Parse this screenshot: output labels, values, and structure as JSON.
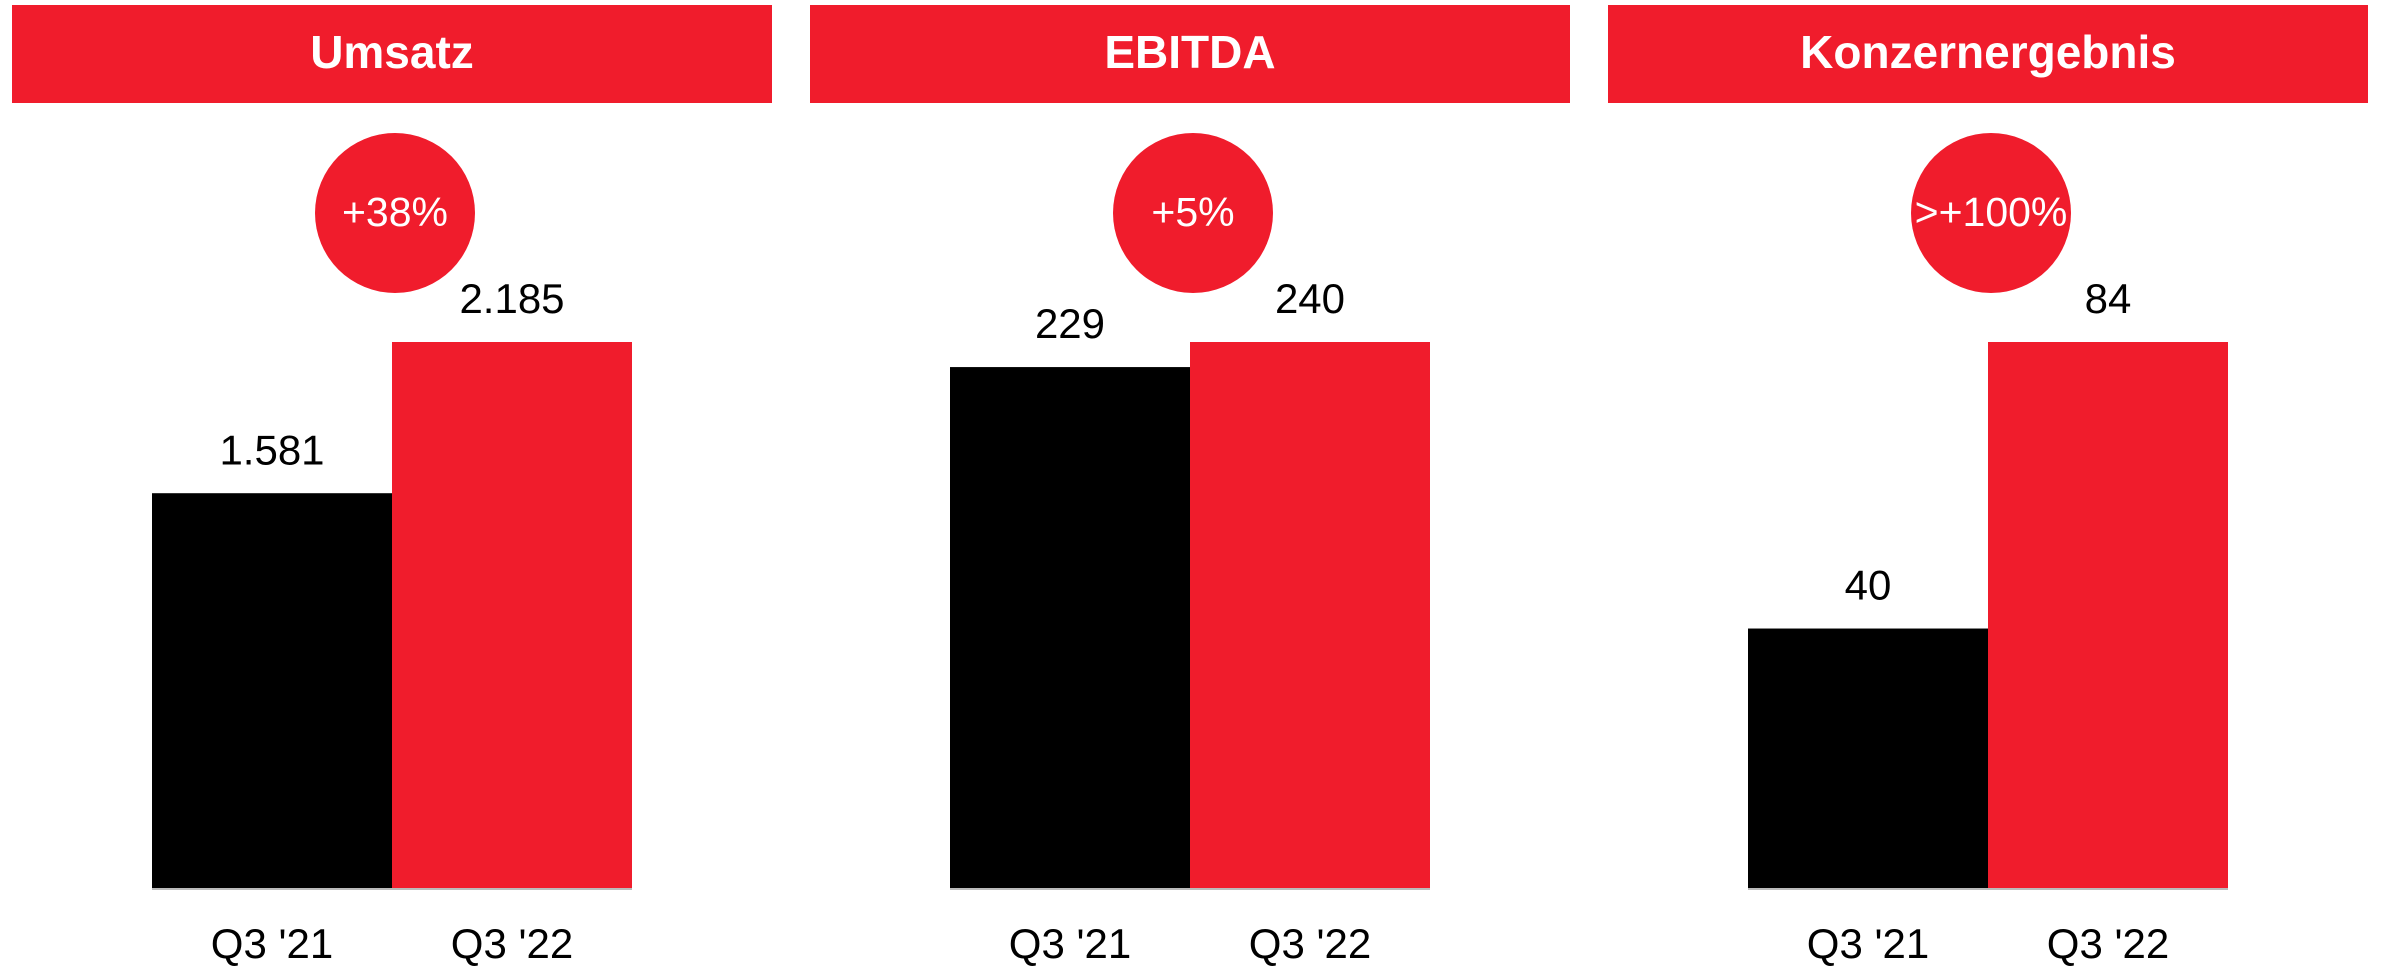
{
  "chart_data": [
    {
      "type": "bar",
      "title": "Umsatz",
      "annotation": "+38%",
      "categories": [
        "Q3 '21",
        "Q3 '22"
      ],
      "values": [
        1581,
        2185
      ],
      "value_labels": [
        "1.581",
        "2.185"
      ],
      "colors": [
        "#000000",
        "#f01c2c"
      ]
    },
    {
      "type": "bar",
      "title": "EBITDA",
      "annotation": "+5%",
      "categories": [
        "Q3 '21",
        "Q3 '22"
      ],
      "values": [
        229,
        240
      ],
      "colors": [
        "#000000",
        "#f01c2c"
      ]
    },
    {
      "type": "bar",
      "title": "Konzernergebnis",
      "annotation": ">+100%",
      "categories": [
        "Q3 '21",
        "Q3 '22"
      ],
      "values": [
        40,
        84
      ],
      "colors": [
        "#000000",
        "#f01c2c"
      ]
    }
  ]
}
